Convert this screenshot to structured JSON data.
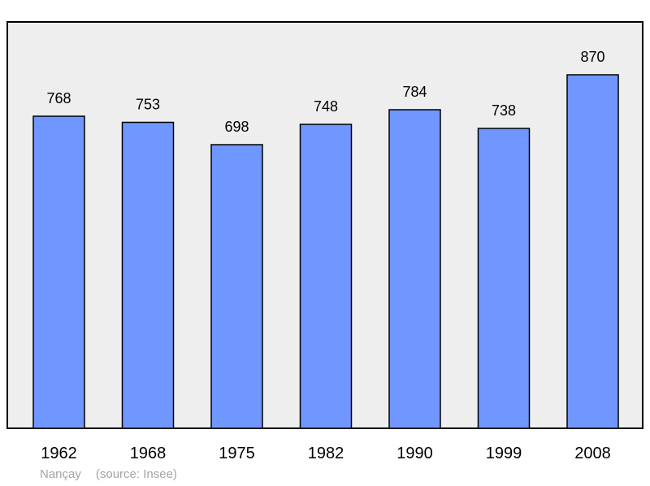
{
  "chart_data": {
    "type": "bar",
    "categories": [
      "1962",
      "1968",
      "1975",
      "1982",
      "1990",
      "1999",
      "2008"
    ],
    "values": [
      768,
      753,
      698,
      748,
      784,
      738,
      870
    ],
    "title": "",
    "xlabel": "",
    "ylabel": "",
    "ylim": [
      0,
      920
    ],
    "grid": false,
    "legend": "none",
    "colors": {
      "bar_fill": "#7096ff",
      "bar_stroke": "#000000",
      "plot_background": "#eeeeee",
      "frame": "#000000",
      "footer_text": "#a3a3a3"
    }
  },
  "footer": {
    "place": "Nançay",
    "source": "(source: Insee)"
  }
}
